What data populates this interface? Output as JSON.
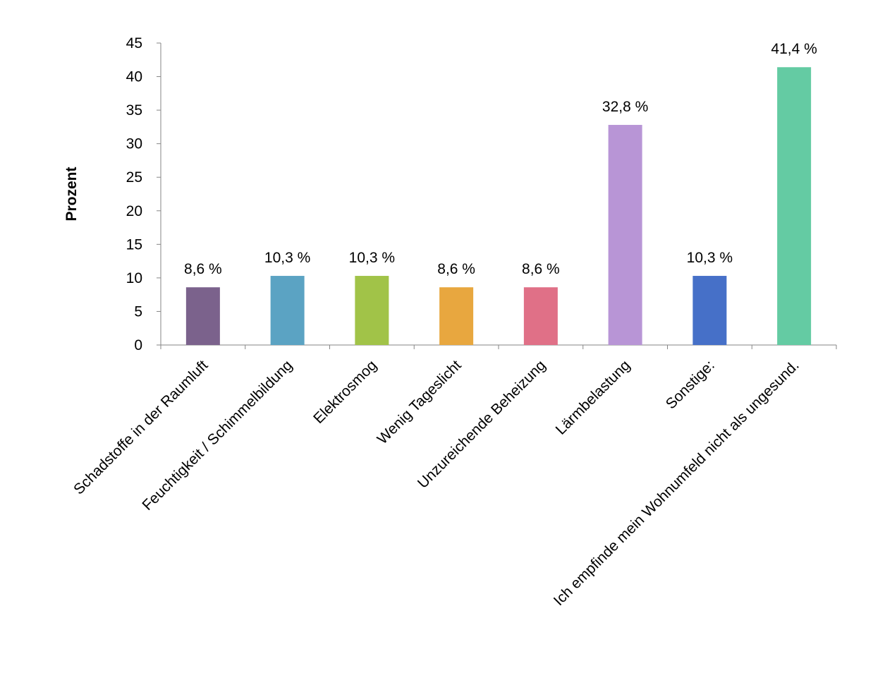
{
  "chart_data": {
    "type": "bar",
    "title": "",
    "xlabel": "",
    "ylabel": "Prozent",
    "ylim": [
      0,
      45
    ],
    "yticks": [
      0,
      5,
      10,
      15,
      20,
      25,
      30,
      35,
      40,
      45
    ],
    "grid": false,
    "legend": "none",
    "categories": [
      "Schadstoffe in der Raumluft",
      "Feuchtigkeit / Schimmelbildung",
      "Elektrosmog",
      "Wenig Tageslicht",
      "Unzureichende Beheizung",
      "Lärmbelastung",
      "Sonstige:",
      "Ich empfinde mein Wohnumfeld nicht als ungesund."
    ],
    "values": [
      8.6,
      10.3,
      10.3,
      8.6,
      8.6,
      32.8,
      10.3,
      41.4
    ],
    "data_labels": [
      "8,6 %",
      "10,3 %",
      "10,3 %",
      "8,6 %",
      "8,6 %",
      "32,8 %",
      "10,3 %",
      "41,4 %"
    ],
    "colors": [
      "#7b628c",
      "#5ba3c3",
      "#a1c348",
      "#e8a73f",
      "#e07087",
      "#b895d6",
      "#4670c8",
      "#64cba3"
    ]
  }
}
